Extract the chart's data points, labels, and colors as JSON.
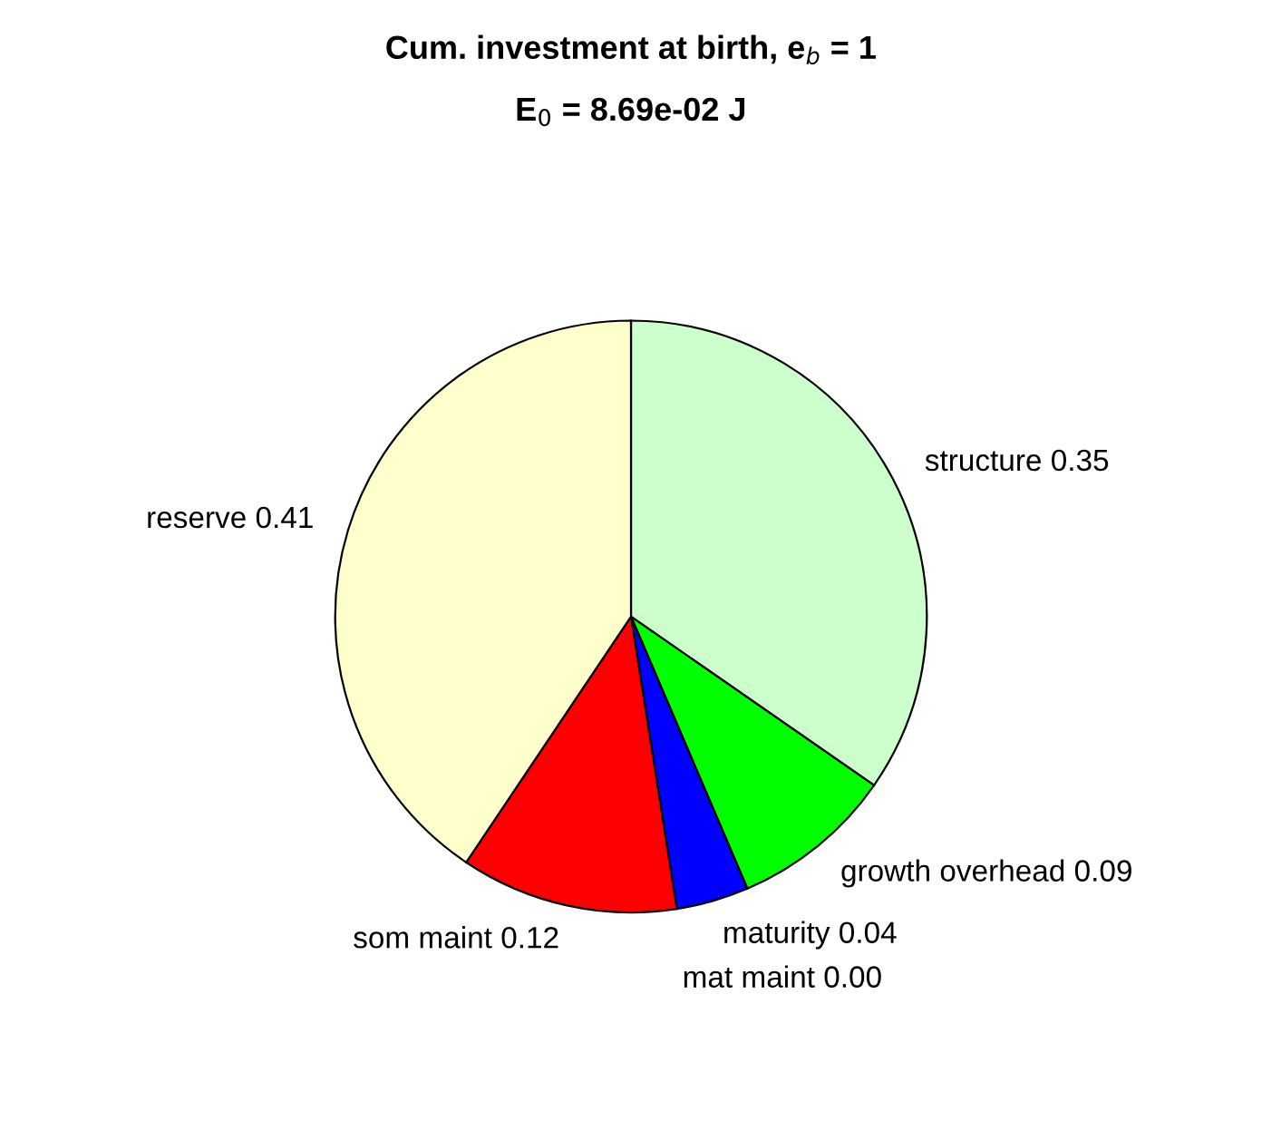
{
  "chart_data": {
    "type": "pie",
    "title": "Cum. investment at birth, e$_{b}$ = 1",
    "subtitle": "E$_{0}$ = 8.69e-02 J",
    "categories": [
      "structure",
      "growth overhead",
      "maturity",
      "mat maint",
      "som maint",
      "reserve"
    ],
    "values": [
      0.35,
      0.09,
      0.04,
      0.0,
      0.12,
      0.41
    ],
    "value_labels": [
      "0.35",
      "0.09",
      "0.04",
      "0.00",
      "0.12",
      "0.41"
    ],
    "colors": [
      "#ccffcc",
      "#00ff00",
      "#0000ff",
      "#ff00ff",
      "#ff0000",
      "#ffffcc"
    ]
  }
}
